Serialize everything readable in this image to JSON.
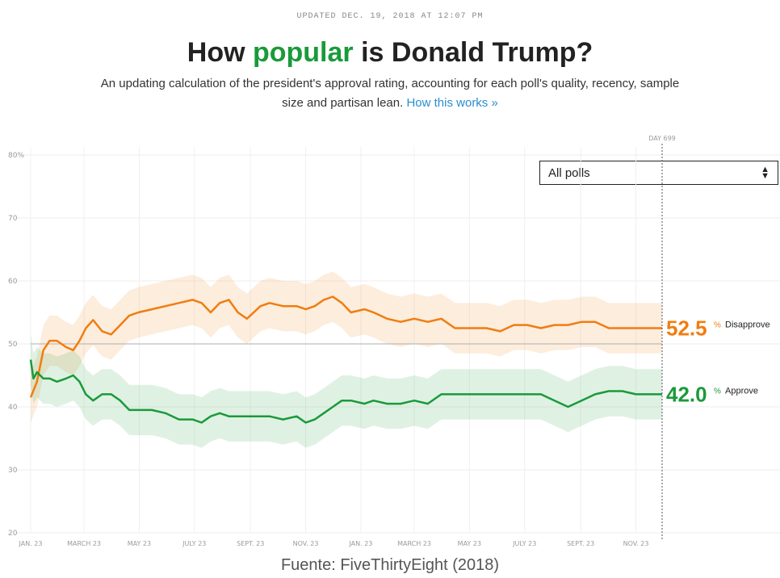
{
  "header": {
    "updated": "UPDATED DEC. 19, 2018 AT 12:07 PM",
    "title_pre": "How ",
    "title_accent": "popular",
    "title_post": " is Donald Trump?",
    "subtitle": "An updating calculation of the president's approval rating, accounting for each poll's quality, recency, sample size and partisan lean.",
    "subtitle_link": "How this works »"
  },
  "filter": {
    "selected": "All polls"
  },
  "source": "Fuente: FiveThirtyEight (2018)",
  "colors": {
    "disapprove": "#f07d10",
    "approve": "#1a9a3a",
    "accent_title": "#1a9a3a",
    "link": "#2a8ecf"
  },
  "chart_data": {
    "type": "line",
    "title": "How popular is Donald Trump?",
    "y_ticks": [
      {
        "value": 80,
        "label": "80%"
      },
      {
        "value": 70,
        "label": "70"
      },
      {
        "value": 60,
        "label": "60"
      },
      {
        "value": 50,
        "label": "50"
      },
      {
        "value": 40,
        "label": "40"
      },
      {
        "value": 30,
        "label": "30"
      },
      {
        "value": 20,
        "label": "20"
      }
    ],
    "ylim": [
      20,
      80
    ],
    "xlim": [
      1,
      699
    ],
    "x_ticks": [
      {
        "day": 1,
        "label": "JAN. 23"
      },
      {
        "day": 60,
        "label": "MARCH 23"
      },
      {
        "day": 121,
        "label": "MAY 23"
      },
      {
        "day": 182,
        "label": "JULY 23"
      },
      {
        "day": 244,
        "label": "SEPT. 23"
      },
      {
        "day": 305,
        "label": "NOV. 23"
      },
      {
        "day": 366,
        "label": "JAN. 23"
      },
      {
        "day": 425,
        "label": "MARCH 23"
      },
      {
        "day": 486,
        "label": "MAY 23"
      },
      {
        "day": 547,
        "label": "JULY 23"
      },
      {
        "day": 609,
        "label": "SEPT. 23"
      },
      {
        "day": 670,
        "label": "NOV. 23"
      }
    ],
    "reference_line": 50,
    "current_day": 699,
    "current_day_label": "DAY 699",
    "grid": true,
    "series": [
      {
        "name": "Disapprove",
        "key": "disapprove",
        "end_value": "52.5",
        "end_unit": "%",
        "band_halfwidth": 4,
        "x": [
          1,
          8,
          15,
          22,
          30,
          40,
          48,
          55,
          62,
          70,
          80,
          90,
          100,
          110,
          120,
          135,
          150,
          165,
          180,
          190,
          200,
          210,
          220,
          230,
          240,
          255,
          265,
          280,
          295,
          305,
          315,
          325,
          335,
          345,
          355,
          370,
          380,
          395,
          410,
          425,
          440,
          455,
          470,
          490,
          505,
          520,
          535,
          550,
          565,
          580,
          595,
          610,
          625,
          640,
          655,
          670,
          685,
          699
        ],
        "y": [
          41.5,
          44,
          49,
          50.5,
          50.5,
          49.5,
          49,
          50.5,
          52.5,
          53.8,
          52,
          51.5,
          53,
          54.5,
          55,
          55.5,
          56,
          56.5,
          57,
          56.5,
          55,
          56.5,
          57,
          55,
          54,
          56,
          56.5,
          56,
          56,
          55.5,
          56,
          57,
          57.5,
          56.5,
          55,
          55.5,
          55,
          54,
          53.5,
          54,
          53.5,
          54,
          52.5,
          52.5,
          52.5,
          52,
          53,
          53,
          52.5,
          53,
          53,
          53.5,
          53.5,
          52.5,
          52.5,
          52.5,
          52.5,
          52.5
        ]
      },
      {
        "name": "Approve",
        "key": "approve",
        "end_value": "42.0",
        "end_unit": "%",
        "band_halfwidth": 4,
        "x": [
          1,
          4,
          8,
          15,
          22,
          30,
          40,
          48,
          55,
          62,
          70,
          80,
          90,
          100,
          110,
          120,
          135,
          150,
          165,
          180,
          190,
          200,
          210,
          220,
          230,
          240,
          255,
          265,
          280,
          295,
          305,
          315,
          325,
          335,
          345,
          355,
          370,
          380,
          395,
          410,
          425,
          440,
          455,
          470,
          490,
          505,
          520,
          535,
          550,
          565,
          580,
          595,
          610,
          625,
          640,
          655,
          670,
          685,
          699
        ],
        "y": [
          47.5,
          44.5,
          45.5,
          44.5,
          44.5,
          44,
          44.5,
          45,
          44,
          42,
          41,
          42,
          42,
          41,
          39.5,
          39.5,
          39.5,
          39,
          38,
          38,
          37.5,
          38.5,
          39,
          38.5,
          38.5,
          38.5,
          38.5,
          38.5,
          38,
          38.5,
          37.5,
          38,
          39,
          40,
          41,
          41,
          40.5,
          41,
          40.5,
          40.5,
          41,
          40.5,
          42,
          42,
          42,
          42,
          42,
          42,
          42,
          42,
          41,
          40,
          41,
          42,
          42.5,
          42.5,
          42,
          42,
          42
        ]
      }
    ]
  }
}
